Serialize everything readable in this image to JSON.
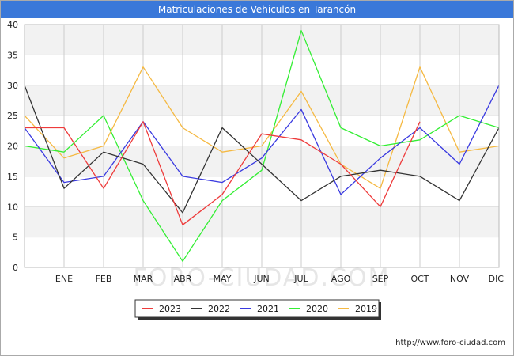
{
  "page": {
    "title": "Matriculaciones de Vehiculos en Tarancón",
    "source_url": "http://www.foro-ciudad.com",
    "watermark": "FORO-CIUDAD.COM"
  },
  "chart_data": {
    "type": "line",
    "title": "Matriculaciones de Vehiculos en Tarancón",
    "categories": [
      "",
      "ENE",
      "FEB",
      "MAR",
      "ABR",
      "MAY",
      "JUN",
      "JUL",
      "AGO",
      "SEP",
      "OCT",
      "NOV",
      "DIC"
    ],
    "ylim": [
      0,
      40
    ],
    "yticks": [
      0,
      5,
      10,
      15,
      20,
      25,
      30,
      35,
      40
    ],
    "grid": true,
    "legend_position": "bottom",
    "series": [
      {
        "name": "2023",
        "color": "#ee3b3b",
        "values": [
          23,
          23,
          13,
          24,
          7,
          12,
          22,
          21,
          17,
          10,
          24,
          null,
          null
        ]
      },
      {
        "name": "2022",
        "color": "#333333",
        "values": [
          30,
          13,
          19,
          17,
          9,
          23,
          17,
          11,
          15,
          16,
          15,
          11,
          23
        ]
      },
      {
        "name": "2021",
        "color": "#3a3ae0",
        "values": [
          23,
          14,
          15,
          24,
          15,
          14,
          18,
          26,
          12,
          18,
          23,
          17,
          30
        ]
      },
      {
        "name": "2020",
        "color": "#33ee33",
        "values": [
          20,
          19,
          25,
          11,
          1,
          11,
          16,
          39,
          23,
          20,
          21,
          25,
          23
        ]
      },
      {
        "name": "2019",
        "color": "#f5b942",
        "values": [
          25,
          18,
          20,
          33,
          23,
          19,
          20,
          29,
          17,
          13,
          33,
          19,
          20
        ]
      }
    ]
  }
}
